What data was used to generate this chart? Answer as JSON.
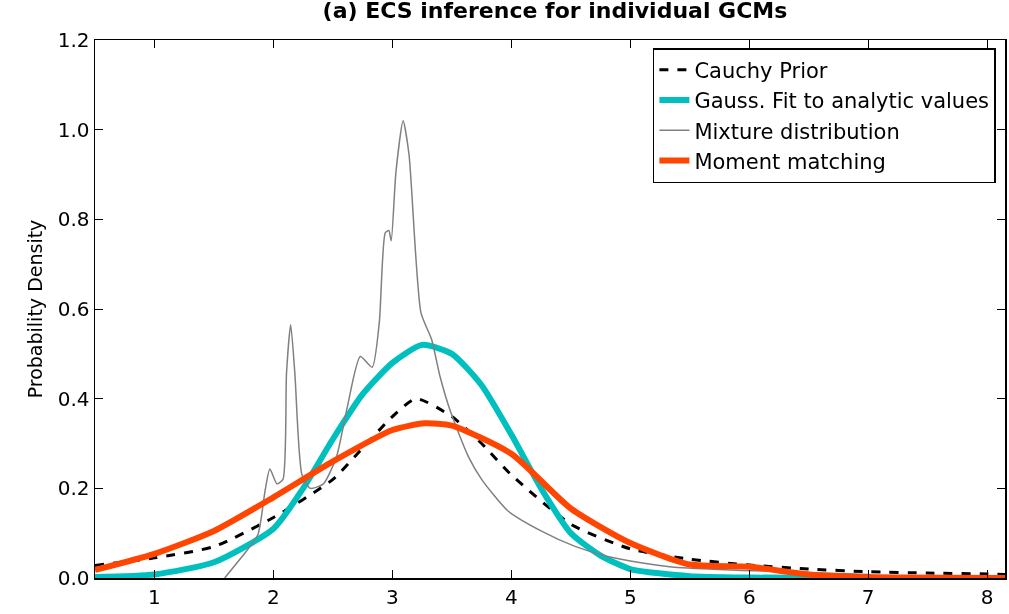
{
  "chart_data": {
    "type": "line",
    "title": "(a) ECS inference for individual GCMs",
    "ylabel": "Probability Density",
    "xlim": [
      0.5,
      8.15
    ],
    "xticks": [
      1,
      2,
      3,
      4,
      5,
      6,
      7,
      8
    ],
    "ylim": [
      0,
      1.2
    ],
    "yticks": [
      {
        "value": 0,
        "label": "0.0"
      },
      {
        "value": 0.2,
        "label": "0.2"
      },
      {
        "value": 0.4,
        "label": "0.4"
      },
      {
        "value": 0.6,
        "label": "0.6"
      },
      {
        "value": 0.8,
        "label": "0.8"
      },
      {
        "value": 1,
        "label": "1.0"
      },
      {
        "value": 1.2,
        "label": "1.2"
      }
    ],
    "grid": false,
    "legend": "top right",
    "marker": "none",
    "series": [
      {
        "name": "Cauchy Prior",
        "color": "#000000",
        "line_style": "dashed",
        "x": [
          0.5,
          1,
          1.5,
          2,
          2.5,
          2.75,
          3,
          3.2,
          3.5,
          3.75,
          4,
          4.5,
          5,
          5.5,
          6,
          6.5,
          7,
          7.5,
          8,
          8.15
        ],
        "values": [
          0.028,
          0.045,
          0.07,
          0.135,
          0.22,
          0.29,
          0.36,
          0.4,
          0.36,
          0.3,
          0.23,
          0.12,
          0.065,
          0.042,
          0.029,
          0.02,
          0.014,
          0.011,
          0.009,
          0.008
        ]
      },
      {
        "name": "Gauss. Fit to analytic values",
        "color": "#00bfbf",
        "line_style": "solid",
        "x": [
          0.5,
          1,
          1.5,
          2,
          2.25,
          2.5,
          2.75,
          3,
          3.25,
          3.5,
          3.75,
          4,
          4.25,
          4.5,
          4.75,
          5,
          5.5,
          6,
          7,
          8.15
        ],
        "values": [
          0.002,
          0.008,
          0.035,
          0.11,
          0.2,
          0.31,
          0.41,
          0.48,
          0.52,
          0.5,
          0.43,
          0.32,
          0.2,
          0.1,
          0.05,
          0.02,
          0.004,
          0.001,
          0,
          0
        ]
      },
      {
        "name": "Mixture distribution",
        "color": "#808080",
        "line_style": "solid",
        "x": [
          1.59,
          1.77,
          1.87,
          1.93,
          1.97,
          2.03,
          2.08,
          2.11,
          2.145,
          2.18,
          2.24,
          2.31,
          2.42,
          2.53,
          2.62,
          2.73,
          2.83,
          2.89,
          2.94,
          2.97,
          2.99,
          3.03,
          3.09,
          3.14,
          3.24,
          3.33,
          3.4,
          3.49,
          3.64,
          3.75,
          3.97,
          4.25,
          4.53,
          4.81,
          5.09,
          5.37,
          5.93,
          7
        ],
        "values": [
          0,
          0.059,
          0.097,
          0.195,
          0.243,
          0.21,
          0.22,
          0.457,
          0.565,
          0.457,
          0.23,
          0.2,
          0.21,
          0.27,
          0.38,
          0.494,
          0.47,
          0.57,
          0.77,
          0.775,
          0.752,
          0.906,
          1.02,
          0.944,
          0.592,
          0.532,
          0.45,
          0.37,
          0.27,
          0.22,
          0.15,
          0.105,
          0.071,
          0.048,
          0.034,
          0.024,
          0.017,
          0.008
        ]
      },
      {
        "name": "Moment matching",
        "color": "#ff4500",
        "line_style": "solid",
        "x": [
          0.5,
          1,
          1.5,
          2,
          2.5,
          3,
          3.27,
          3.5,
          4,
          4.5,
          5,
          5.5,
          6,
          6.5,
          7,
          8.15
        ],
        "values": [
          0.018,
          0.054,
          0.105,
          0.18,
          0.26,
          0.33,
          0.345,
          0.34,
          0.277,
          0.155,
          0.078,
          0.03,
          0.025,
          0.008,
          0.002,
          0
        ]
      }
    ]
  }
}
